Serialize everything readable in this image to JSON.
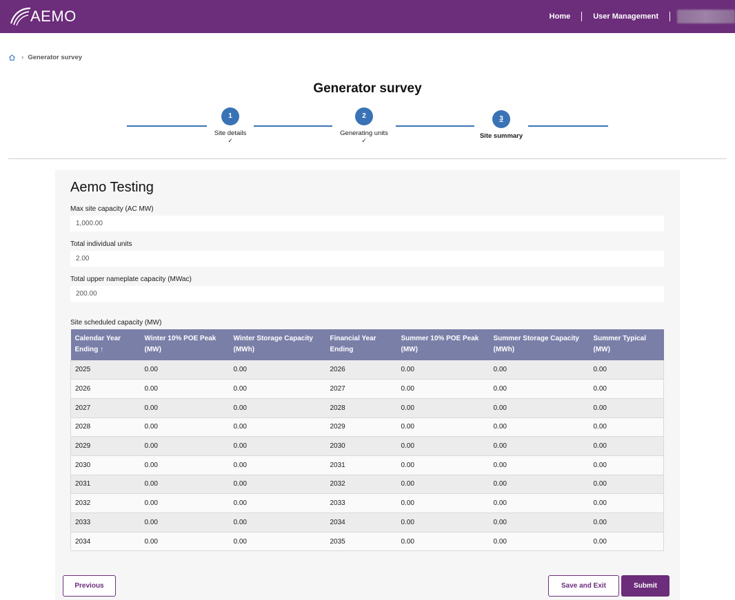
{
  "header": {
    "logo_text": "AEMO",
    "nav": [
      {
        "label": "Home"
      },
      {
        "label": "User Management"
      }
    ]
  },
  "breadcrumb": {
    "current": "Generator survey"
  },
  "page": {
    "title": "Generator survey"
  },
  "stepper": {
    "steps": [
      {
        "number": "1",
        "label": "Site details",
        "done": "✓"
      },
      {
        "number": "2",
        "label": "Generating units",
        "done": "✓"
      },
      {
        "number": "3",
        "label": "Site summary",
        "done": ""
      }
    ]
  },
  "site": {
    "name": "Aemo Testing",
    "fields": [
      {
        "label": "Max site capacity (AC MW)",
        "value": "1,000.00"
      },
      {
        "label": "Total individual units",
        "value": "2.00"
      },
      {
        "label": "Total upper nameplate capacity (MWac)",
        "value": "200.00"
      }
    ]
  },
  "table": {
    "label": "Site scheduled capacity (MW)",
    "columns": [
      "Calendar Year Ending ↑",
      "Winter 10% POE Peak (MW)",
      "Winter Storage Capacity (MWh)",
      "Financial Year Ending",
      "Summer 10% POE Peak (MW)",
      "Summer Storage Capacity (MWh)",
      "Summer Typical (MW)"
    ],
    "rows": [
      [
        "2025",
        "0.00",
        "0.00",
        "2026",
        "0.00",
        "0.00",
        "0.00"
      ],
      [
        "2026",
        "0.00",
        "0.00",
        "2027",
        "0.00",
        "0.00",
        "0.00"
      ],
      [
        "2027",
        "0.00",
        "0.00",
        "2028",
        "0.00",
        "0.00",
        "0.00"
      ],
      [
        "2028",
        "0.00",
        "0.00",
        "2029",
        "0.00",
        "0.00",
        "0.00"
      ],
      [
        "2029",
        "0.00",
        "0.00",
        "2030",
        "0.00",
        "0.00",
        "0.00"
      ],
      [
        "2030",
        "0.00",
        "0.00",
        "2031",
        "0.00",
        "0.00",
        "0.00"
      ],
      [
        "2031",
        "0.00",
        "0.00",
        "2032",
        "0.00",
        "0.00",
        "0.00"
      ],
      [
        "2032",
        "0.00",
        "0.00",
        "2033",
        "0.00",
        "0.00",
        "0.00"
      ],
      [
        "2033",
        "0.00",
        "0.00",
        "2034",
        "0.00",
        "0.00",
        "0.00"
      ],
      [
        "2034",
        "0.00",
        "0.00",
        "2035",
        "0.00",
        "0.00",
        "0.00"
      ]
    ]
  },
  "actions": {
    "previous": "Previous",
    "save_exit": "Save and Exit",
    "submit": "Submit"
  },
  "colors": {
    "brand": "#6c2d7a",
    "step": "#3a73b5",
    "table_header": "#7a7fa8"
  }
}
